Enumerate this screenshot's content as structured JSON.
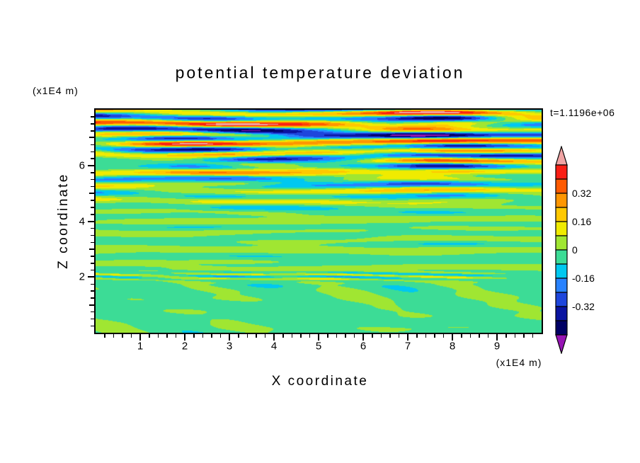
{
  "chart_data": {
    "type": "heatmap",
    "title": "potential temperature deviation",
    "time_label": "t=1.1196e+06",
    "xlabel": "X coordinate",
    "ylabel": "Z coordinate",
    "x_unit": "(x1E4 m)",
    "z_unit": "(x1E4 m)",
    "x_range": [
      0,
      10
    ],
    "z_range": [
      0,
      8
    ],
    "x_axis": {
      "major_ticks": [
        1,
        2,
        3,
        4,
        5,
        6,
        7,
        8,
        9
      ],
      "minor_step": 0.2
    },
    "z_axis": {
      "major_ticks": [
        2,
        4,
        6
      ],
      "medium_ticks": [
        1,
        3,
        5,
        7
      ],
      "minor_step": 0.25
    },
    "colorbar": {
      "labels": [
        "0.32",
        "0.16",
        "0",
        "-0.16",
        "-0.32"
      ],
      "label_values": [
        0.32,
        0.16,
        0,
        -0.16,
        -0.32
      ],
      "level_max": 0.48,
      "level_min": -0.48,
      "interval": 0.08,
      "colors_top_to_bottom": [
        "#fa1e14",
        "#ff5a00",
        "#ff9600",
        "#ffc800",
        "#f0eb00",
        "#a0e632",
        "#3cdc96",
        "#00c8f0",
        "#2882ff",
        "#1e46dc",
        "#0a14a0",
        "#000064"
      ],
      "over_color": "#f0a4a4",
      "under_color": "#9614b4",
      "outline_color": "#000000"
    },
    "field_model": {
      "note": "procedural approximation of the stratified-turbulence deviation field; exact gridded values are not recoverable from the source pixels",
      "seed": 11,
      "background_bias": -0.004,
      "waves": {
        "count": 11,
        "amp_min": 0.08,
        "amp_max": 0.22,
        "vert_cycles_min": 8,
        "vert_cycles_max": 26,
        "horiz_cycles_max": 2.0,
        "env_cycles_min": 0.6,
        "env_cycles_max": 2.6
      },
      "amplitude_profile": {
        "base": 0.035,
        "step1": 0.1,
        "z1": [
          0.24,
          0.34
        ],
        "step2": 0.75,
        "z2": [
          0.5,
          0.9
        ]
      },
      "interface_streaks": {
        "count": 3,
        "center": 0.255,
        "sigma": 0.02,
        "amp_min": 0.1,
        "amp_max": 0.18,
        "vert_cycles_min": 35,
        "vert_cycles_max": 55
      },
      "bottom_blobs": {
        "count": 6,
        "bias": -0.02,
        "amp": 0.05,
        "fade": [
          0.2,
          0.285
        ]
      }
    }
  }
}
